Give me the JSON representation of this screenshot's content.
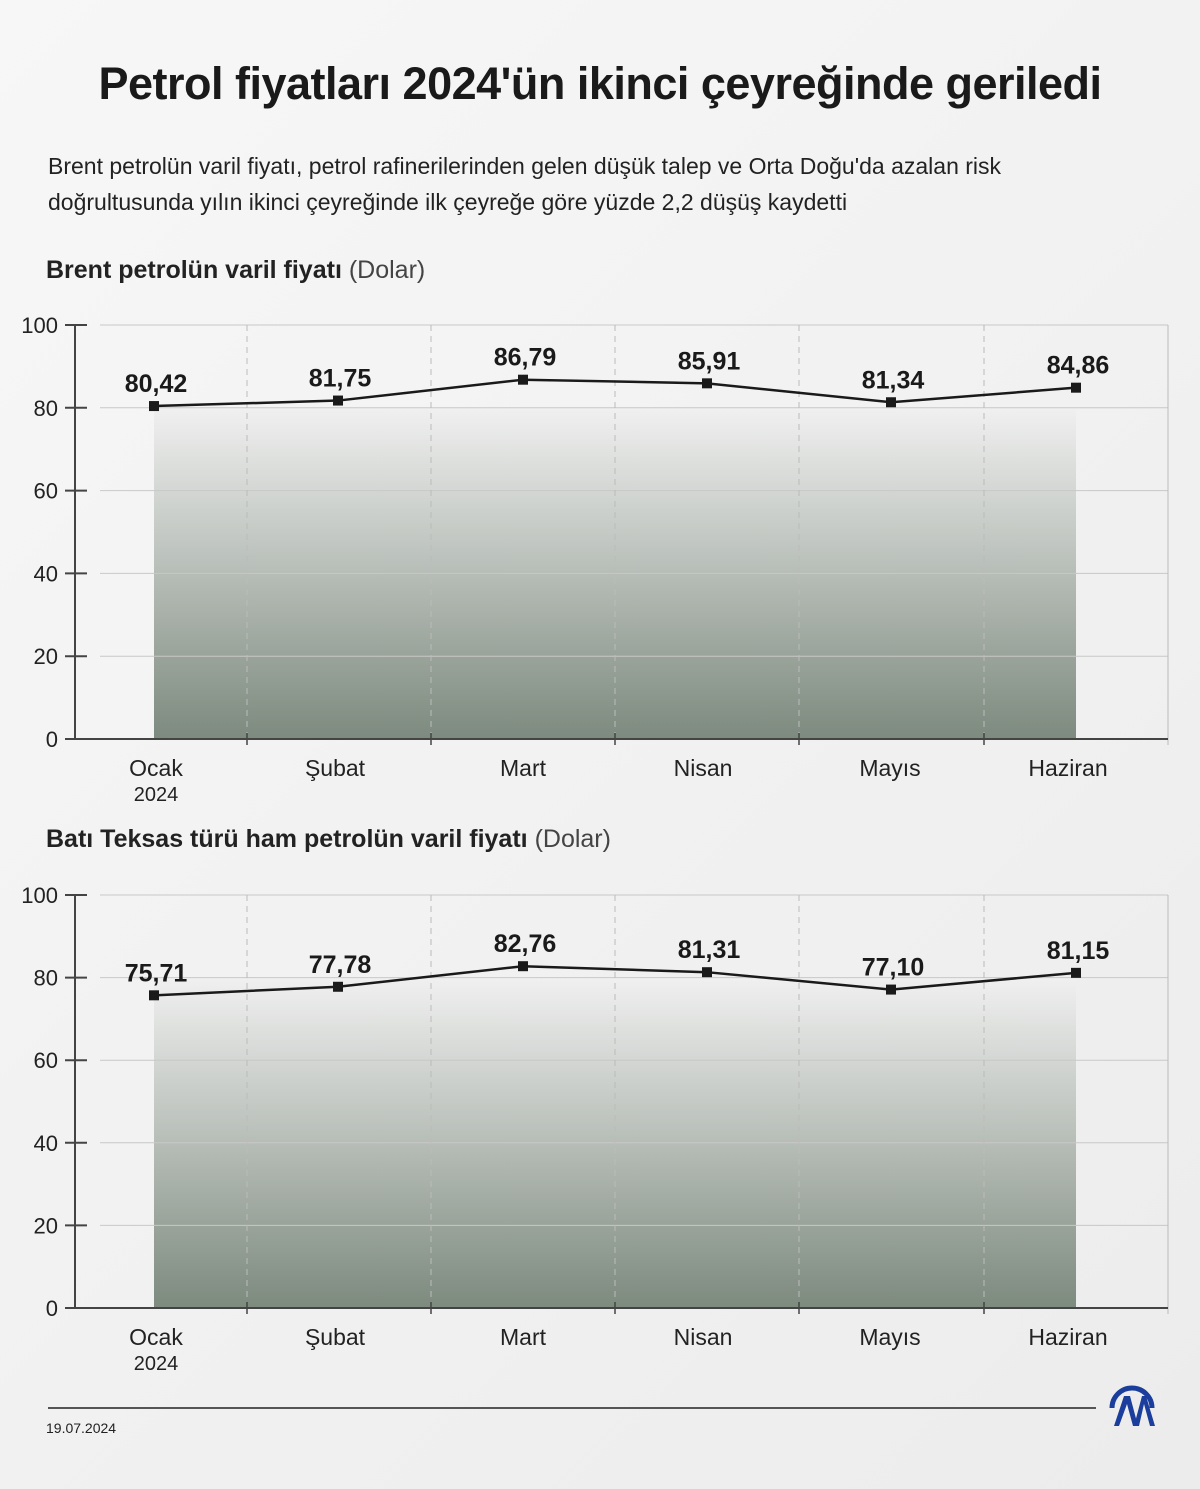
{
  "title": "Petrol fiyatları 2024'ün ikinci çeyreğinde geriledi",
  "subtitle": "Brent petrolün varil fiyatı, petrol rafinerilerinden gelen düşük talep ve Orta Doğu'da azalan risk doğrultusunda yılın ikinci çeyreğinde ilk çeyreğe göre yüzde 2,2 düşüş kaydetti",
  "footer": {
    "date": "19.07.2024",
    "logo": "AA"
  },
  "chart_data": [
    {
      "type": "line",
      "title": "Brent petrolün varil fiyatı",
      "unit": "(Dolar)",
      "categories": [
        "Ocak",
        "Şubat",
        "Mart",
        "Nisan",
        "Mayıs",
        "Haziran"
      ],
      "first_sublabel": "2024",
      "values": [
        80.42,
        81.75,
        86.79,
        85.91,
        81.34,
        84.86
      ],
      "labels": [
        "80,42",
        "81,75",
        "86,79",
        "85,91",
        "81,34",
        "84,86"
      ],
      "ylim": [
        0,
        100
      ],
      "yticks": [
        0,
        20,
        40,
        60,
        80,
        100
      ],
      "grid": true
    },
    {
      "type": "line",
      "title": "Batı Teksas türü ham petrolün varil fiyatı",
      "unit": "(Dolar)",
      "categories": [
        "Ocak",
        "Şubat",
        "Mart",
        "Nisan",
        "Mayıs",
        "Haziran"
      ],
      "first_sublabel": "2024",
      "values": [
        75.71,
        77.78,
        82.76,
        81.31,
        77.1,
        81.15
      ],
      "labels": [
        "75,71",
        "77,78",
        "82,76",
        "81,31",
        "77,10",
        "81,15"
      ],
      "ylim": [
        0,
        100
      ],
      "yticks": [
        0,
        20,
        40,
        60,
        80,
        100
      ],
      "grid": true
    }
  ],
  "colors": {
    "line": "#1a1a1a",
    "fill_top": "#f0f0f0",
    "fill_bottom": "#7d8a7e",
    "logo": "#1b3e9c"
  }
}
